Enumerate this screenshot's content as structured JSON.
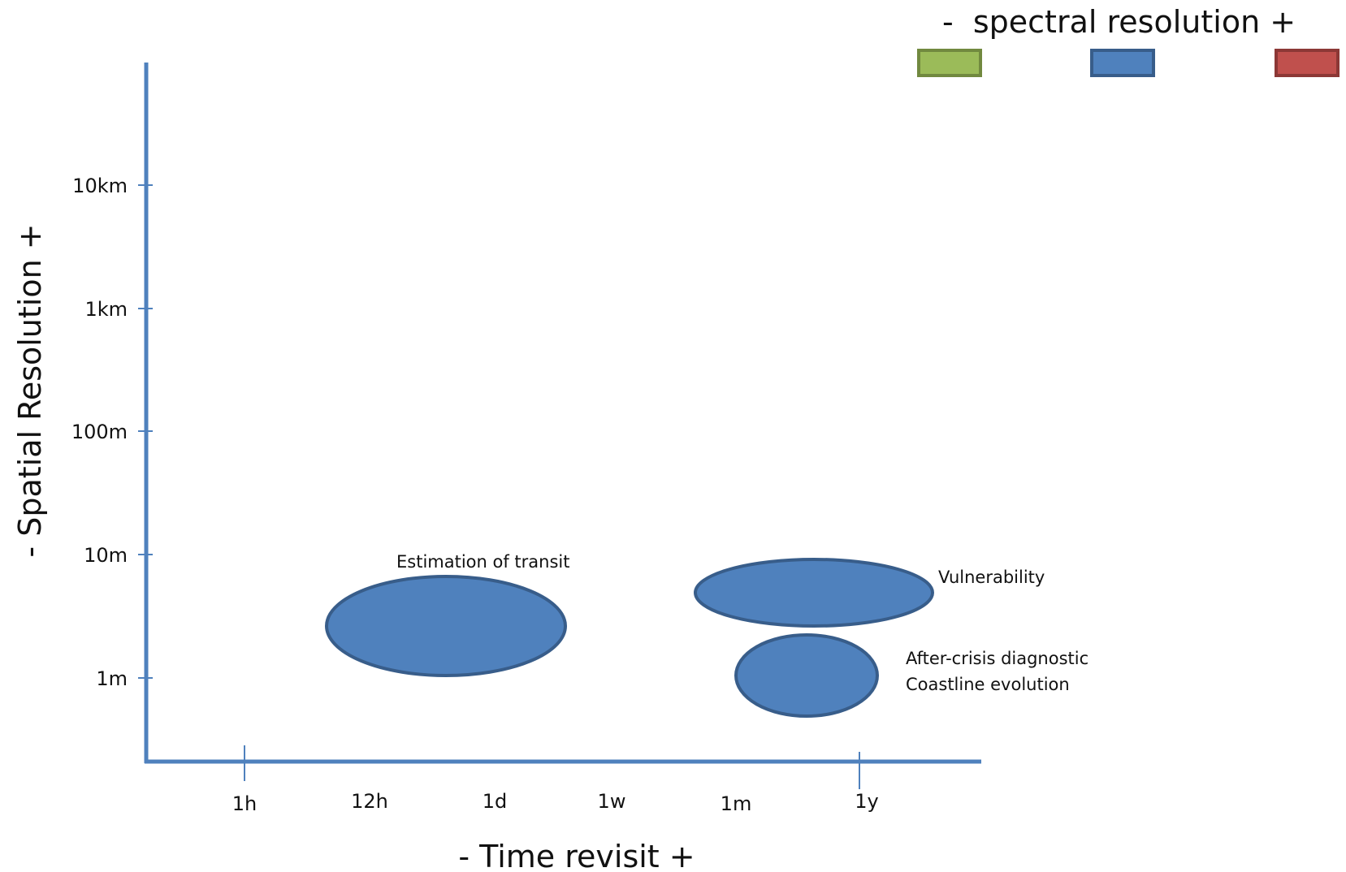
{
  "legend": {
    "title": "-  spectral resolution +",
    "swatches": [
      {
        "name": "green",
        "fill": "#9bbb59",
        "stroke": "#71893f"
      },
      {
        "name": "blue",
        "fill": "#4f81bd",
        "stroke": "#385d8a"
      },
      {
        "name": "red",
        "fill": "#c0504d",
        "stroke": "#8c3836"
      }
    ]
  },
  "axes": {
    "x_title": "- Time revisit +",
    "y_title": "- Spatial Resolution +",
    "color": "#4f81bd",
    "x_ticks": [
      "1h",
      "12h",
      "1d",
      "1w",
      "1m",
      "1y"
    ],
    "y_ticks": [
      "10km",
      "1km",
      "100m",
      "10m",
      "1m"
    ]
  },
  "regions": [
    {
      "label": "Estimation of transit",
      "fill": "#4f81bd",
      "stroke": "#385d8a"
    },
    {
      "label": "Vulnerability",
      "fill": "#4f81bd",
      "stroke": "#385d8a"
    },
    {
      "label": "After-crisis diagnostic",
      "label2": "Coastline evolution",
      "fill": "#4f81bd",
      "stroke": "#385d8a"
    }
  ]
}
